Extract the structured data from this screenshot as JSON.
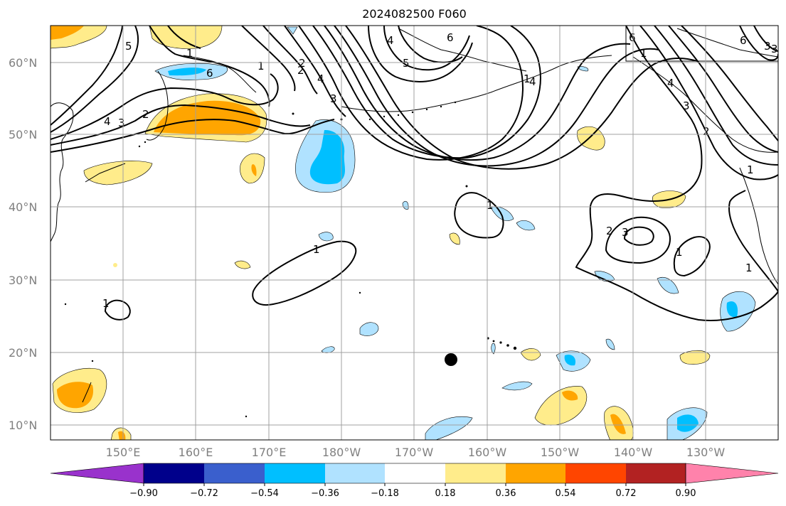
{
  "title": "2024082500 F060",
  "map": {
    "lat_labels": [
      "60°N",
      "50°N",
      "40°N",
      "30°N",
      "20°N",
      "10°N"
    ],
    "lon_labels": [
      "150°E",
      "160°E",
      "170°E",
      "180°W",
      "170°W",
      "160°W",
      "150°W",
      "140°W",
      "130°W"
    ],
    "contour_labels": [
      "5",
      "4",
      "3",
      "2",
      "1",
      "1",
      "2",
      "4",
      "3",
      "6",
      "6",
      "4",
      "5",
      "6",
      "6",
      "4",
      "3",
      "2",
      "1",
      "1",
      "1",
      "2",
      "3",
      "1",
      "1",
      "4",
      "3",
      "2",
      "1",
      "1",
      "1",
      "3"
    ]
  },
  "colorbar": {
    "labels": [
      "−0.90",
      "−0.72",
      "−0.54",
      "−0.36",
      "−0.18",
      "0.18",
      "0.36",
      "0.54",
      "0.72",
      "0.90"
    ],
    "colors": [
      "#9932cc",
      "#00008b",
      "#3a5fcd",
      "#00bfff",
      "#b0e2ff",
      "#ffffff",
      "#ffec8b",
      "#ffa500",
      "#ff4500",
      "#b22222",
      "#ff82ab"
    ]
  }
}
